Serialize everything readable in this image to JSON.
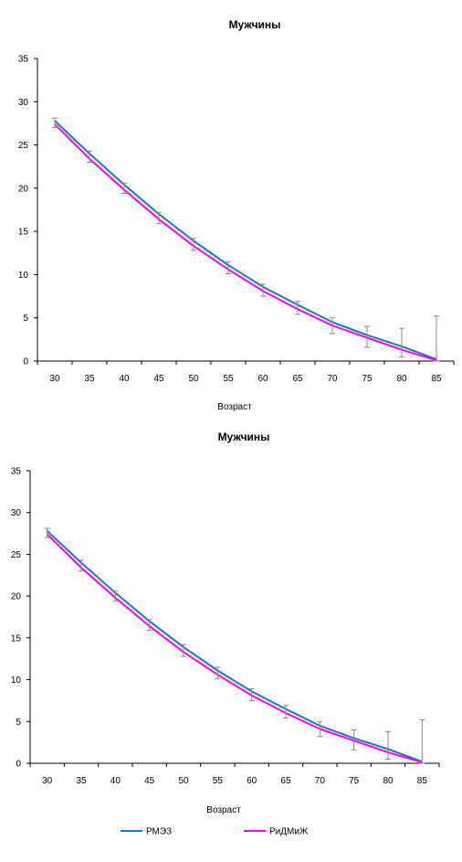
{
  "chart_data": [
    {
      "type": "line",
      "title": "Мужчины",
      "xlabel": "Возраст",
      "ylabel": "",
      "x": [
        30,
        35,
        40,
        45,
        50,
        55,
        60,
        65,
        70,
        75,
        80,
        85
      ],
      "ylim": [
        0,
        35
      ],
      "yticks": [
        0,
        5,
        10,
        15,
        20,
        25,
        30,
        35
      ],
      "grid": false,
      "series": [
        {
          "name": "РМЭЗ",
          "color": "#1f77b4",
          "values": [
            27.8,
            24.0,
            20.4,
            17.0,
            13.9,
            11.1,
            8.6,
            6.5,
            4.5,
            3.0,
            1.7,
            0.2
          ]
        },
        {
          "name": "РиДМиЖ",
          "color": "#ff00ff",
          "values": [
            27.4,
            23.4,
            19.8,
            16.4,
            13.3,
            10.6,
            8.1,
            6.0,
            4.1,
            2.7,
            1.3,
            0.1
          ]
        }
      ],
      "error_bars": {
        "color": "#888888",
        "low": [
          27.0,
          23.0,
          19.4,
          15.9,
          12.8,
          10.1,
          7.5,
          5.4,
          3.2,
          1.6,
          0.5,
          0.0
        ],
        "high": [
          28.1,
          24.3,
          20.6,
          17.2,
          14.2,
          11.5,
          8.9,
          6.9,
          5.0,
          4.0,
          3.8,
          5.2
        ]
      }
    },
    {
      "type": "line",
      "title": "Мужчины",
      "xlabel": "Возраст",
      "ylabel": "",
      "x": [
        30,
        35,
        40,
        45,
        50,
        55,
        60,
        65,
        70,
        75,
        80,
        85
      ],
      "ylim": [
        0,
        35
      ],
      "yticks": [
        0,
        5,
        10,
        15,
        20,
        25,
        30,
        35
      ],
      "grid": false,
      "legend": "bottom",
      "series": [
        {
          "name": "РМЭЗ",
          "color": "#1f77b4",
          "values": [
            27.8,
            24.0,
            20.4,
            17.0,
            13.9,
            11.1,
            8.6,
            6.5,
            4.5,
            3.0,
            1.7,
            0.2
          ]
        },
        {
          "name": "РиДМиЖ",
          "color": "#ff00ff",
          "values": [
            27.4,
            23.4,
            19.8,
            16.4,
            13.3,
            10.6,
            8.1,
            6.0,
            4.1,
            2.7,
            1.3,
            0.1
          ]
        }
      ],
      "error_bars": {
        "color": "#888888",
        "low": [
          27.0,
          23.0,
          19.4,
          15.9,
          12.8,
          10.1,
          7.5,
          5.4,
          3.2,
          1.6,
          0.5,
          0.0
        ],
        "high": [
          28.1,
          24.3,
          20.6,
          17.2,
          14.2,
          11.5,
          8.9,
          6.9,
          5.0,
          4.0,
          3.8,
          5.2
        ]
      }
    }
  ]
}
